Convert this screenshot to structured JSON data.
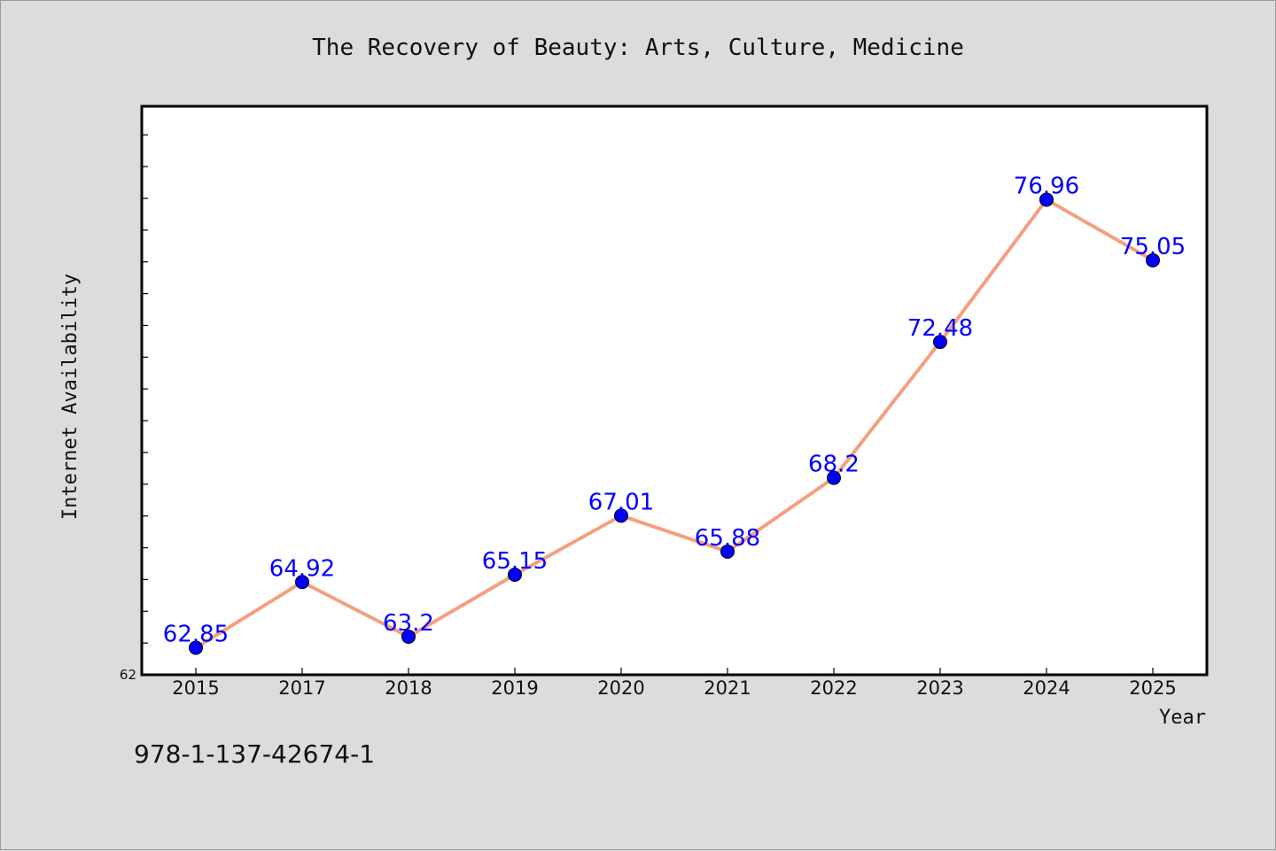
{
  "chart_data": {
    "type": "line",
    "title": "The Recovery of Beauty: Arts, Culture, Medicine",
    "xlabel": "Year",
    "ylabel": "Internet Availability",
    "categories": [
      "2015",
      "2017",
      "2018",
      "2019",
      "2020",
      "2021",
      "2022",
      "2023",
      "2024",
      "2025"
    ],
    "series": [
      {
        "values": [
          62.85,
          64.92,
          63.2,
          65.15,
          67.01,
          65.88,
          68.2,
          72.48,
          76.96,
          75.05
        ]
      }
    ],
    "data_labels": [
      "62.85",
      "64.92",
      "63.2",
      "65.15",
      "67.01",
      "65.88",
      "68.2",
      "72.48",
      "76.96",
      "75.05"
    ],
    "ylim": [
      62,
      79.9
    ],
    "y_tick_labels": [
      "62"
    ],
    "grid": false,
    "line_color": "#f4a07f",
    "marker_color": "#0000ff",
    "label_color": "#0000ff"
  },
  "footer": {
    "isbn": "978-1-137-42674-1"
  }
}
